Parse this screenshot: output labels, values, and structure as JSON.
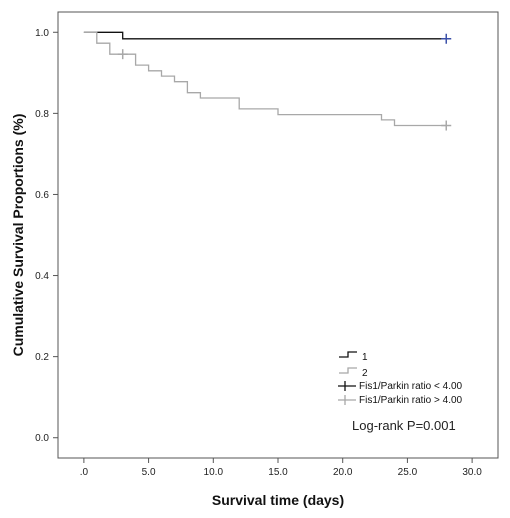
{
  "chart_data": {
    "type": "line",
    "subtype": "kaplan-meier step",
    "xlabel": "Survival time (days)",
    "ylabel": "Cumulative Survival Proportions (%)",
    "xlim": [
      -2,
      32
    ],
    "ylim": [
      -0.05,
      1.05
    ],
    "x_ticks": [
      {
        "value": 0,
        "label": ".0"
      },
      {
        "value": 5,
        "label": "5.0"
      },
      {
        "value": 10,
        "label": "10.0"
      },
      {
        "value": 15,
        "label": "15.0"
      },
      {
        "value": 20,
        "label": "20.0"
      },
      {
        "value": 25,
        "label": "25.0"
      },
      {
        "value": 30,
        "label": "30.0"
      }
    ],
    "y_ticks": [
      {
        "value": 0.0,
        "label": "0.0"
      },
      {
        "value": 0.2,
        "label": "0.2"
      },
      {
        "value": 0.4,
        "label": "0.4"
      },
      {
        "value": 0.6,
        "label": "0.6"
      },
      {
        "value": 0.8,
        "label": "0.8"
      },
      {
        "value": 1.0,
        "label": "1.0"
      }
    ],
    "grid": false,
    "legend_position": "bottom-right",
    "series": [
      {
        "name": "1",
        "censor_label": "Fis1/Parkin ratio < 4.00",
        "color": "#111111",
        "censor_color": "#3a4fa8",
        "steps": [
          [
            0,
            1.0
          ],
          [
            3,
            0.984
          ],
          [
            28,
            0.984
          ]
        ],
        "censored": [
          [
            28,
            0.984
          ]
        ]
      },
      {
        "name": "2",
        "censor_label": "Fis1/Parkin ratio > 4.00",
        "color": "#a8a8a8",
        "censor_color": "#a8a8a8",
        "steps": [
          [
            0,
            1.0
          ],
          [
            1,
            0.973
          ],
          [
            2,
            0.946
          ],
          [
            4,
            0.919
          ],
          [
            5,
            0.905
          ],
          [
            6,
            0.892
          ],
          [
            7,
            0.878
          ],
          [
            8,
            0.851
          ],
          [
            9,
            0.838
          ],
          [
            12,
            0.811
          ],
          [
            15,
            0.797
          ],
          [
            23,
            0.784
          ],
          [
            24,
            0.77
          ],
          [
            28,
            0.77
          ]
        ],
        "censored": [
          [
            3,
            0.946
          ],
          [
            28,
            0.77
          ]
        ]
      }
    ],
    "annotations": [
      {
        "text": "Log-rank P=0.001"
      }
    ]
  }
}
